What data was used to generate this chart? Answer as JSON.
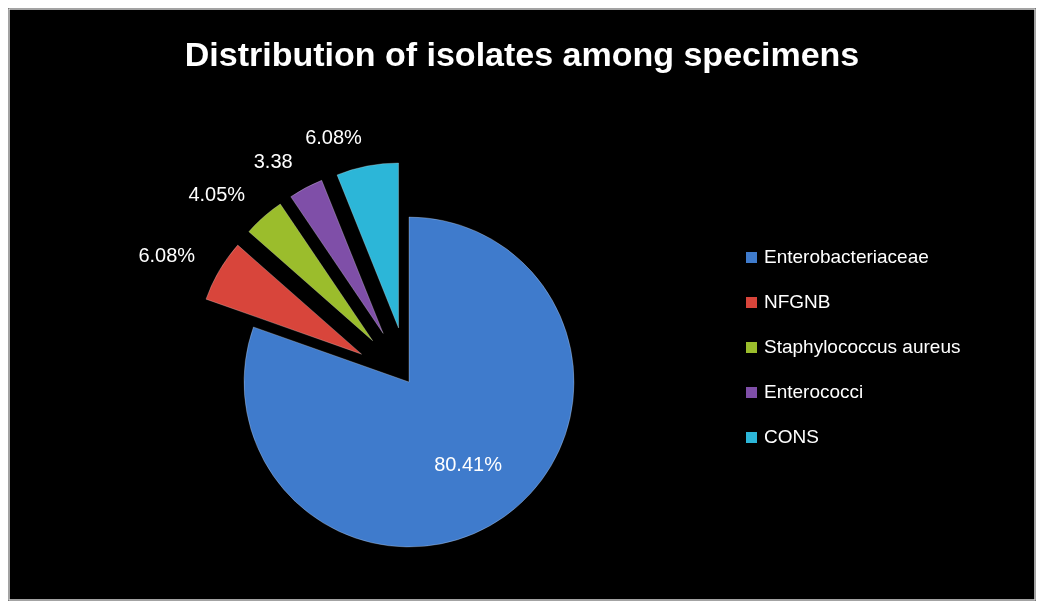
{
  "chart_data": {
    "type": "pie",
    "title": "Distribution of isolates among specimens",
    "categories": [
      "Enterobacteriaceae",
      "NFGNB",
      "Staphylococcus aureus",
      "Enterococci",
      "CONS"
    ],
    "values": [
      80.41,
      6.08,
      4.05,
      3.38,
      6.08
    ],
    "colors": [
      "#3f7bcc",
      "#d8453b",
      "#9bbd2c",
      "#7f4fa8",
      "#2cb6d8"
    ],
    "value_labels": [
      "80.41%",
      "6.08%",
      "4.05%",
      "3.38",
      "6.08%"
    ],
    "legend": "right"
  }
}
